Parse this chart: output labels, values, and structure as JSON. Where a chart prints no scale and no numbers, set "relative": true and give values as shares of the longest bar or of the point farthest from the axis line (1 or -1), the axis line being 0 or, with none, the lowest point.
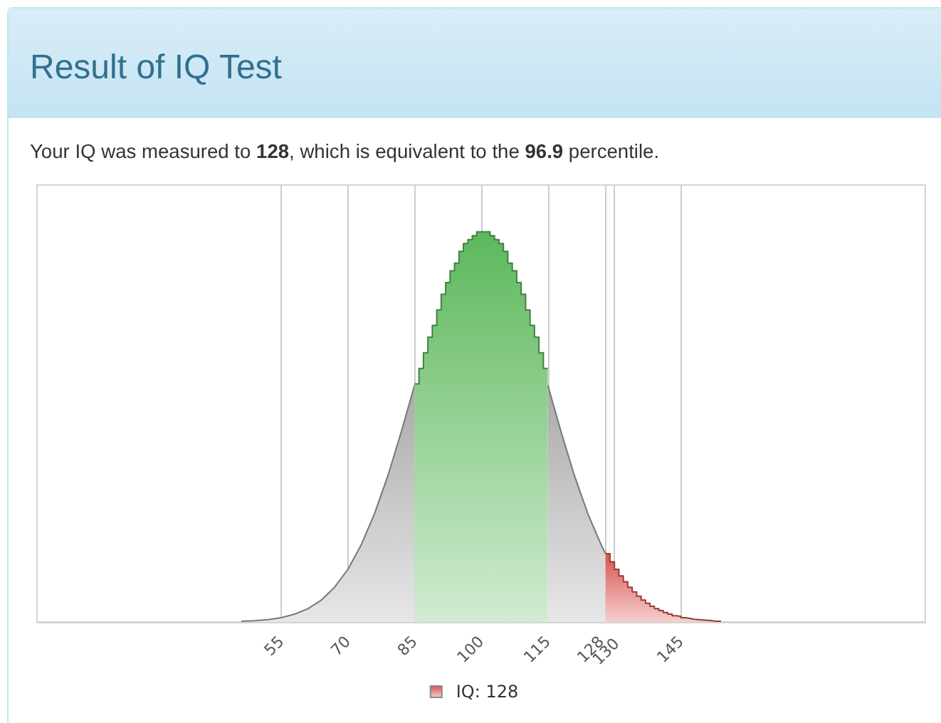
{
  "chart_data": {
    "type": "area",
    "title": "Result of IQ Test",
    "subtitle": "Your IQ was measured to 128, which is equivalent to the 96.9 percentile.",
    "relative": true,
    "xlim": [
      0,
      200
    ],
    "xticks": [
      55,
      70,
      85,
      100,
      115,
      128,
      130,
      145
    ],
    "grid": "x",
    "legend": "bottom",
    "marker": "none",
    "series": [
      {
        "color": "#aaaaaa",
        "x": [
          46,
          49,
          52,
          55,
          58,
          61,
          64,
          67,
          70,
          73,
          76,
          79,
          82,
          85,
          88,
          91,
          94,
          97,
          100,
          103,
          106,
          109,
          112,
          115,
          118,
          121,
          124,
          127,
          128
        ],
        "values": [
          0.002,
          0.003,
          0.006,
          0.011,
          0.02,
          0.034,
          0.056,
          0.089,
          0.135,
          0.198,
          0.278,
          0.375,
          0.487,
          0.607,
          null,
          null,
          null,
          null,
          null,
          null,
          null,
          null,
          null,
          0.607,
          0.487,
          0.375,
          0.278,
          0.198,
          0.175
        ]
      },
      {
        "color": "#5cb85c",
        "x": [
          85,
          86,
          86,
          87,
          87,
          88,
          88,
          89,
          89,
          90,
          90,
          91,
          91,
          92,
          92,
          93,
          93,
          94,
          94,
          95,
          95,
          96,
          96,
          97,
          97,
          98,
          98,
          99,
          99,
          100,
          100,
          101,
          101,
          102,
          102,
          103,
          103,
          104,
          104,
          105,
          105,
          106,
          106,
          107,
          107,
          108,
          108,
          109,
          109,
          110,
          110,
          111,
          111,
          112,
          112,
          113,
          113,
          114,
          114,
          115
        ],
        "values": [
          0.61,
          0.61,
          0.65,
          0.65,
          0.69,
          0.69,
          0.73,
          0.73,
          0.76,
          0.76,
          0.8,
          0.8,
          0.84,
          0.84,
          0.87,
          0.87,
          0.9,
          0.9,
          0.92,
          0.92,
          0.95,
          0.95,
          0.97,
          0.97,
          0.98,
          0.98,
          0.99,
          0.99,
          1,
          1,
          1,
          1,
          1,
          1,
          0.99,
          0.99,
          0.98,
          0.98,
          0.97,
          0.97,
          0.95,
          0.95,
          0.92,
          0.92,
          0.9,
          0.9,
          0.87,
          0.87,
          0.84,
          0.84,
          0.8,
          0.8,
          0.76,
          0.76,
          0.73,
          0.73,
          0.69,
          0.69,
          0.65,
          0.65
        ]
      },
      {
        "name": "IQ: 128",
        "color": "#d9534f",
        "x": [
          128,
          129,
          129,
          130,
          130,
          131,
          131,
          132,
          132,
          133,
          133,
          134,
          134,
          135,
          135,
          136,
          136,
          137,
          137,
          138,
          138,
          139,
          139,
          140,
          140,
          141,
          141,
          142,
          142,
          143,
          143,
          144,
          144,
          145,
          145,
          146,
          146,
          147,
          147,
          148,
          148,
          149,
          149,
          150,
          150,
          151,
          151,
          152,
          152,
          153,
          153,
          154
        ],
        "values": [
          0.175,
          0.175,
          0.154,
          0.154,
          0.135,
          0.135,
          0.118,
          0.118,
          0.103,
          0.103,
          0.089,
          0.089,
          0.077,
          0.077,
          0.066,
          0.066,
          0.056,
          0.056,
          0.048,
          0.048,
          0.04,
          0.04,
          0.034,
          0.034,
          0.029,
          0.029,
          0.024,
          0.024,
          0.02,
          0.02,
          0.016,
          0.016,
          0.014,
          0.014,
          0.011,
          0.011,
          0.009,
          0.009,
          0.007,
          0.007,
          0.006,
          0.006,
          0.005,
          0.005,
          0.004,
          0.004,
          0.003,
          0.003,
          0.002,
          0.002,
          0.002,
          0.002
        ]
      }
    ]
  }
}
